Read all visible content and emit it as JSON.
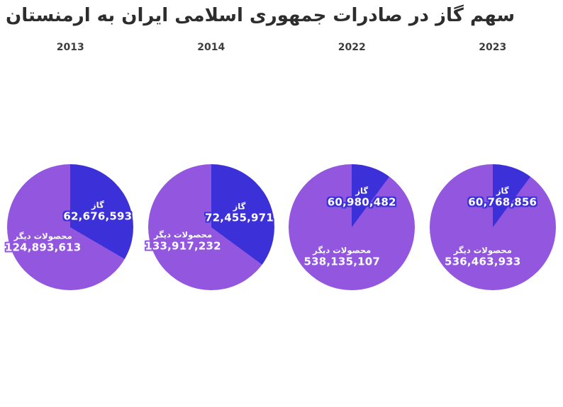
{
  "chart_data": {
    "type": "pie",
    "title": "سهم گاز در صادرات جمهوری اسلامی ایران به ارمنستان",
    "subplot_layout": "1x4",
    "direction": "clockwise",
    "start_angle_deg": 0,
    "legend": "none",
    "background": "#ffffff",
    "title_color": "#2d2d2d",
    "year_label_color": "#3d3d3d",
    "label_text_color": "#ffffff",
    "slice_labels": [
      "گاز",
      "محصولات دیگر"
    ],
    "slice_colors": [
      "#3C31D8",
      "#9257DE"
    ],
    "pies": [
      {
        "year": "2013",
        "slices": [
          {
            "label": "گاز",
            "value": 62676593,
            "display": "62,676,593",
            "color": "#3C31D8"
          },
          {
            "label": "محصولات دیگر",
            "value": 124893613,
            "display": "124,893,613",
            "color": "#9257DE"
          }
        ]
      },
      {
        "year": "2014",
        "slices": [
          {
            "label": "گاز",
            "value": 72455971,
            "display": "72,455,971",
            "color": "#3C31D8"
          },
          {
            "label": "محصولات دیگر",
            "value": 133917232,
            "display": "133,917,232",
            "color": "#9257DE"
          }
        ]
      },
      {
        "year": "2022",
        "slices": [
          {
            "label": "گاز",
            "value": 60980482,
            "display": "60,980,482",
            "color": "#3C31D8"
          },
          {
            "label": "محصولات دیگر",
            "value": 538135107,
            "display": "538,135,107",
            "color": "#9257DE"
          }
        ]
      },
      {
        "year": "2023",
        "slices": [
          {
            "label": "گاز",
            "value": 60768856,
            "display": "60,768,856",
            "color": "#3C31D8"
          },
          {
            "label": "محصولات دیگر",
            "value": 536463933,
            "display": "536,463,933",
            "color": "#9257DE"
          }
        ]
      }
    ]
  }
}
